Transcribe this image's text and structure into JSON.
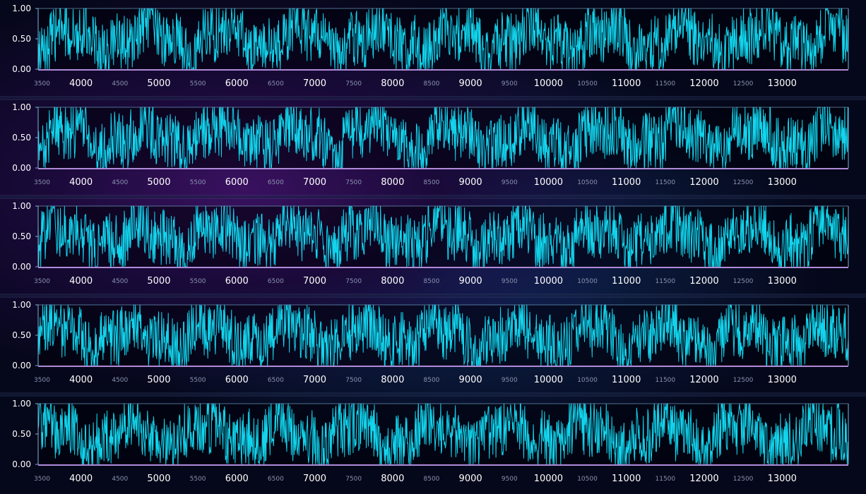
{
  "colors": {
    "series": "#12d4ec",
    "axis": "#7fb4d8",
    "xaxis_line": "#b08ad8",
    "tick_major": "#ffffff",
    "tick_minor": "#8a93b0",
    "ytick": "#ffffff"
  },
  "chart_data": [
    {
      "type": "line",
      "xlim": [
        3450,
        13850
      ],
      "ylim": [
        0,
        1
      ],
      "x_ticks_major": [
        4000,
        5000,
        6000,
        7000,
        8000,
        9000,
        10000,
        11000,
        12000,
        13000
      ],
      "x_ticks_minor": [
        3500,
        4500,
        5500,
        6500,
        7500,
        8500,
        9500,
        10500,
        11500,
        12500
      ],
      "y_ticks": [
        "0.00",
        "0.50",
        "1.00"
      ],
      "series": [
        {
          "x_start": 3450,
          "x_end": 13850,
          "shape": "dense random signal between 0 and 1, mean ≈ 0.5"
        }
      ]
    },
    {
      "type": "line",
      "xlim": [
        3450,
        13850
      ],
      "ylim": [
        0,
        1
      ],
      "x_ticks_major": [
        4000,
        5000,
        6000,
        7000,
        8000,
        9000,
        10000,
        11000,
        12000,
        13000
      ],
      "x_ticks_minor": [
        3500,
        4500,
        5500,
        6500,
        7500,
        8500,
        9500,
        10500,
        11500,
        12500
      ],
      "y_ticks": [
        "0.00",
        "0.50",
        "1.00"
      ],
      "series": [
        {
          "x_start": 3450,
          "x_end": 13850,
          "shape": "dense random signal between 0 and 1, mean ≈ 0.5"
        }
      ]
    },
    {
      "type": "line",
      "xlim": [
        3450,
        13850
      ],
      "ylim": [
        0,
        1
      ],
      "x_ticks_major": [
        4000,
        5000,
        6000,
        7000,
        8000,
        9000,
        10000,
        11000,
        12000,
        13000
      ],
      "x_ticks_minor": [
        3500,
        4500,
        5500,
        6500,
        7500,
        8500,
        9500,
        10500,
        11500,
        12500
      ],
      "y_ticks": [
        "0.00",
        "0.50",
        "1.00"
      ],
      "series": [
        {
          "x_start": 3450,
          "x_end": 13850,
          "shape": "dense random signal between 0 and 1, mean ≈ 0.5"
        }
      ]
    },
    {
      "type": "line",
      "xlim": [
        3450,
        13850
      ],
      "ylim": [
        0,
        1
      ],
      "x_ticks_major": [
        4000,
        5000,
        6000,
        7000,
        8000,
        9000,
        10000,
        11000,
        12000,
        13000
      ],
      "x_ticks_minor": [
        3500,
        4500,
        5500,
        6500,
        7500,
        8500,
        9500,
        10500,
        11500,
        12500
      ],
      "y_ticks": [
        "0.00",
        "0.50",
        "1.00"
      ],
      "series": [
        {
          "x_start": 3450,
          "x_end": 13850,
          "shape": "dense random signal between 0 and 1, mean ≈ 0.5"
        }
      ]
    },
    {
      "type": "line",
      "xlim": [
        3450,
        13850
      ],
      "ylim": [
        0,
        1
      ],
      "x_ticks_major": [
        4000,
        5000,
        6000,
        7000,
        8000,
        9000,
        10000,
        11000,
        12000,
        13000
      ],
      "x_ticks_minor": [
        3500,
        4500,
        5500,
        6500,
        7500,
        8500,
        9500,
        10500,
        11500,
        12500
      ],
      "y_ticks": [
        "0.00",
        "0.50",
        "1.00"
      ],
      "series": [
        {
          "x_start": 3450,
          "x_end": 13850,
          "shape": "dense random signal between 0 and 1, mean ≈ 0.5"
        }
      ]
    }
  ]
}
